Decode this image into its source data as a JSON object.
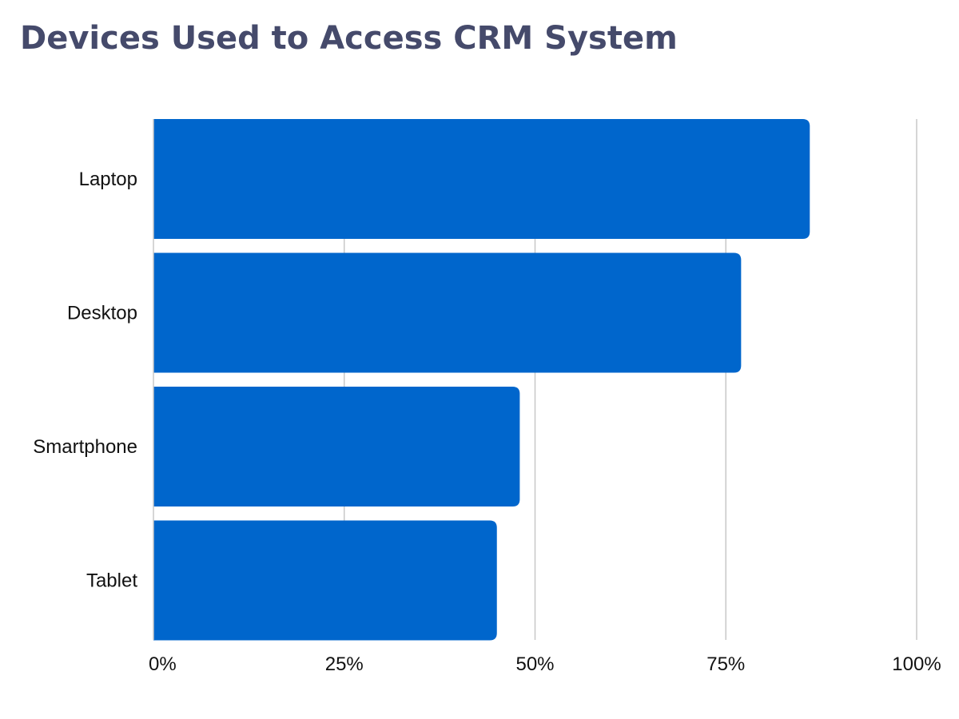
{
  "chart_data": {
    "type": "bar",
    "orientation": "horizontal",
    "title": "Devices Used to Access CRM System",
    "categories": [
      "Laptop",
      "Desktop",
      "Smartphone",
      "Tablet"
    ],
    "values": [
      86,
      77,
      48,
      45
    ],
    "xlim": [
      0,
      100
    ],
    "xticks": [
      "0%",
      "25%",
      "50%",
      "75%",
      "100%"
    ],
    "xlabel": "",
    "ylabel": "",
    "grid": "vertical",
    "bar_color": "#0066cc",
    "grid_color": "#c8c8c8"
  }
}
